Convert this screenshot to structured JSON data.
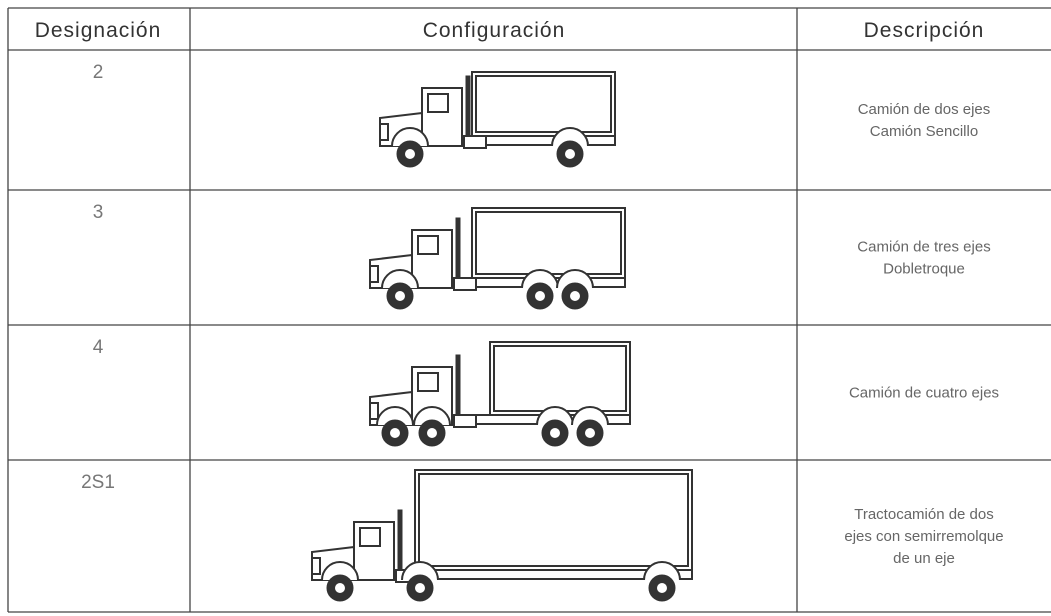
{
  "table": {
    "header": [
      "Designación",
      "Configuración",
      "Descripción"
    ],
    "rows": [
      {
        "designation": "2",
        "description": [
          "Camión de dos ejes",
          "Camión Sencillo"
        ]
      },
      {
        "designation": "3",
        "description": [
          "Camión de tres ejes",
          "Dobletroque"
        ]
      },
      {
        "designation": "4",
        "description": [
          "Camión de cuatro ejes"
        ]
      },
      {
        "designation": "2S1",
        "description": [
          "Tractocamión  de dos",
          "ejes con semirremolque",
          "de un eje"
        ]
      }
    ]
  }
}
